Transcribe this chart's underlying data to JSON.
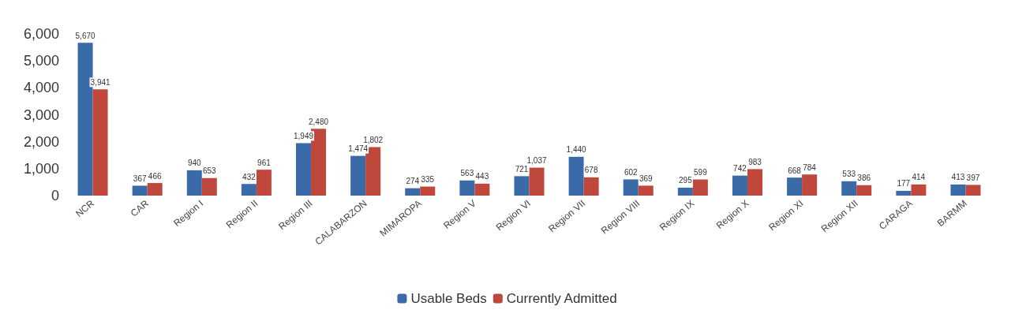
{
  "chart_data": {
    "type": "bar",
    "categories": [
      "NCR",
      "CAR",
      "Region I",
      "Region II",
      "Region III",
      "CALABARZON",
      "MIMAROPA",
      "Region V",
      "Region VI",
      "Region VII",
      "Region VIII",
      "Region IX",
      "Region X",
      "Region XI",
      "Region XII",
      "CARAGA",
      "BARMM"
    ],
    "series": [
      {
        "name": "Usable Beds",
        "color": "#3a6aa8",
        "values": [
          5670,
          367,
          940,
          432,
          1949,
          1474,
          274,
          563,
          721,
          1440,
          602,
          295,
          742,
          668,
          533,
          177,
          413
        ],
        "value_labels": [
          "5,670",
          "367",
          "940",
          "432",
          "1,949",
          "1,474",
          "274",
          "563",
          "721",
          "1,440",
          "602",
          "295",
          "742",
          "668",
          "533",
          "177",
          "413"
        ]
      },
      {
        "name": "Currently Admitted",
        "color": "#c0473c",
        "values": [
          3941,
          466,
          653,
          961,
          2480,
          1802,
          335,
          443,
          1037,
          678,
          369,
          599,
          983,
          784,
          386,
          414,
          397
        ],
        "value_labels": [
          "3,941",
          "466",
          "653",
          "961",
          "2,480",
          "1,802",
          "335",
          "443",
          "1,037",
          "678",
          "369",
          "599",
          "983",
          "784",
          "386",
          "414",
          "397"
        ]
      }
    ],
    "ylim": [
      0,
      6000
    ],
    "yticks": [
      0,
      {
        "value": 1000,
        "label": "1,000"
      },
      {
        "value": 2000,
        "label": "2,000"
      },
      {
        "value": 3000,
        "label": "3,000"
      },
      {
        "value": 4000,
        "label": "4,000"
      },
      {
        "value": 5000,
        "label": "5,000"
      },
      {
        "value": 6000,
        "label": "6,000"
      }
    ],
    "grid": false,
    "legend": "bottom"
  }
}
